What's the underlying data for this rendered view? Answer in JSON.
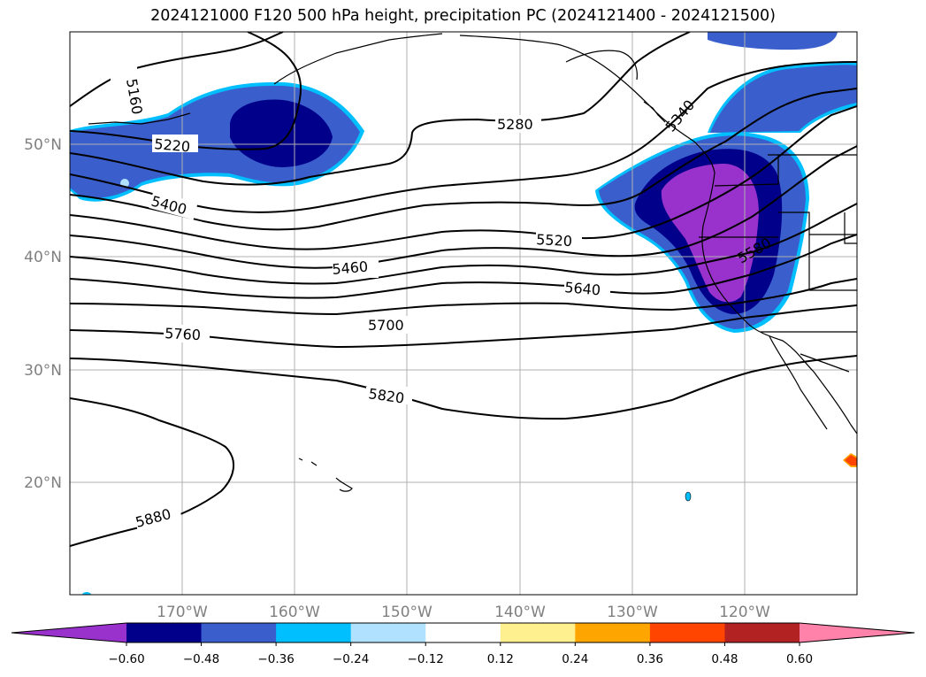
{
  "title": "2024121000 F120 500 hPa height, precipitation PC (2024121400 - 2024121500)",
  "map": {
    "lat_labels": [
      "50°N",
      "40°N",
      "30°N",
      "20°N"
    ],
    "lon_labels": [
      "170°W",
      "160°W",
      "150°W",
      "140°W",
      "130°W",
      "120°W"
    ],
    "grid": true
  },
  "contour_labels": [
    "5160",
    "5220",
    "5280",
    "5340",
    "5400",
    "5460",
    "5520",
    "5580",
    "5640",
    "5700",
    "5760",
    "5820",
    "5880"
  ],
  "colorbar": {
    "ticks": [
      "−0.60",
      "−0.48",
      "−0.36",
      "−0.24",
      "−0.12",
      "0.12",
      "0.24",
      "0.36",
      "0.48",
      "0.60"
    ],
    "colors": [
      "#9932cc",
      "#00008b",
      "#3a5fcd",
      "#00bfff",
      "#b0e2ff",
      "#ffffff",
      "#fff08f",
      "#ffa500",
      "#ff4500",
      "#b22222",
      "#ff82ab"
    ],
    "extend": "both"
  },
  "precip_colors": {
    "neg_light": "#b0e2ff",
    "neg_cyan": "#00bfff",
    "neg_mid": "#3a5fcd",
    "neg_dark": "#00008b",
    "neg_purple": "#9932cc",
    "pos_orange": "#ffa500",
    "pos_red": "#ff4500"
  }
}
